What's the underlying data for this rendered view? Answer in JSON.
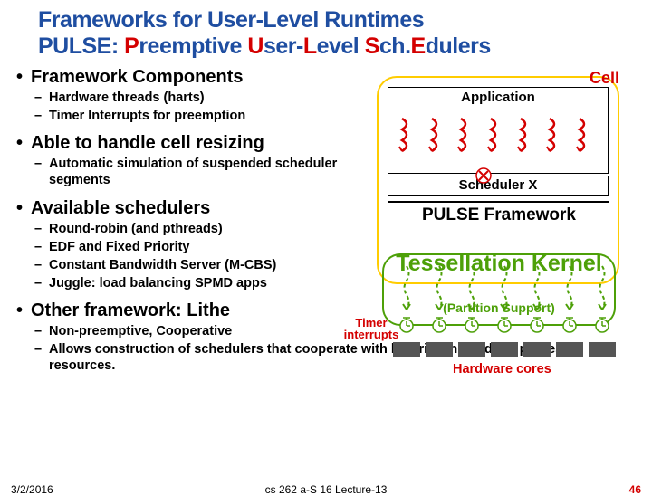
{
  "title_line1": "Frameworks for User-Level Runtimes",
  "title_line2": {
    "p1": "PULSE: ",
    "p2": "P",
    "p3": "reemptive ",
    "p4": "U",
    "p5": "ser-",
    "p6": "L",
    "p7": "evel ",
    "p8": "S",
    "p9": "ch.",
    "p10": "E",
    "p11": "dulers"
  },
  "bullets": {
    "b1": "Framework Components",
    "b1a": "Hardware threads (harts)",
    "b1b": "Timer Interrupts for preemption",
    "b2": "Able to handle cell resizing",
    "b2a": "Automatic simulation of suspended scheduler segments",
    "b3": "Available schedulers",
    "b3a": "Round-robin (and pthreads)",
    "b3b": "EDF and Fixed Priority",
    "b3c": "Constant Bandwidth Server (M-CBS)",
    "b3d": "Juggle: load balancing SPMD apps",
    "b4": "Other framework: Lithe",
    "b4a": "Non-preemptive, Cooperative",
    "b4b": "Allows construction of schedulers that cooperate with libraries in handling processor resources."
  },
  "diagram": {
    "cell": "Cell",
    "application": "Application",
    "scheduler_x": "Scheduler X",
    "pulse": "PULSE Framework",
    "tess_main": "Tessellation Kernel",
    "tess_sub": "(Partition Support)",
    "timer": "Timer interrupts",
    "hw_cores": "Hardware cores",
    "wiggle_color": "#d40000",
    "cell_border": "#ffcc00",
    "tess_color": "#4da008",
    "core_count": 7
  },
  "footer": {
    "date": "3/2/2016",
    "mid": "cs 262 a-S 16 Lecture-13",
    "page": "46"
  },
  "colors": {
    "blue": "#1f4ea1",
    "red": "#d40000",
    "green": "#4da008",
    "yellow": "#ffcc00",
    "core_gray": "#555555"
  }
}
